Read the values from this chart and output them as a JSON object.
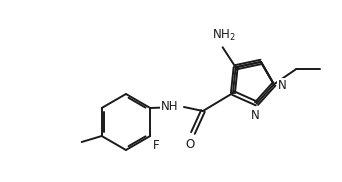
{
  "bg_color": "#ffffff",
  "line_color": "#1a1a1a",
  "line_width": 1.4,
  "font_size": 8.5,
  "figsize": [
    3.42,
    1.82
  ],
  "dpi": 100,
  "xlim": [
    0,
    3.42
  ],
  "ylim": [
    0,
    1.82
  ]
}
